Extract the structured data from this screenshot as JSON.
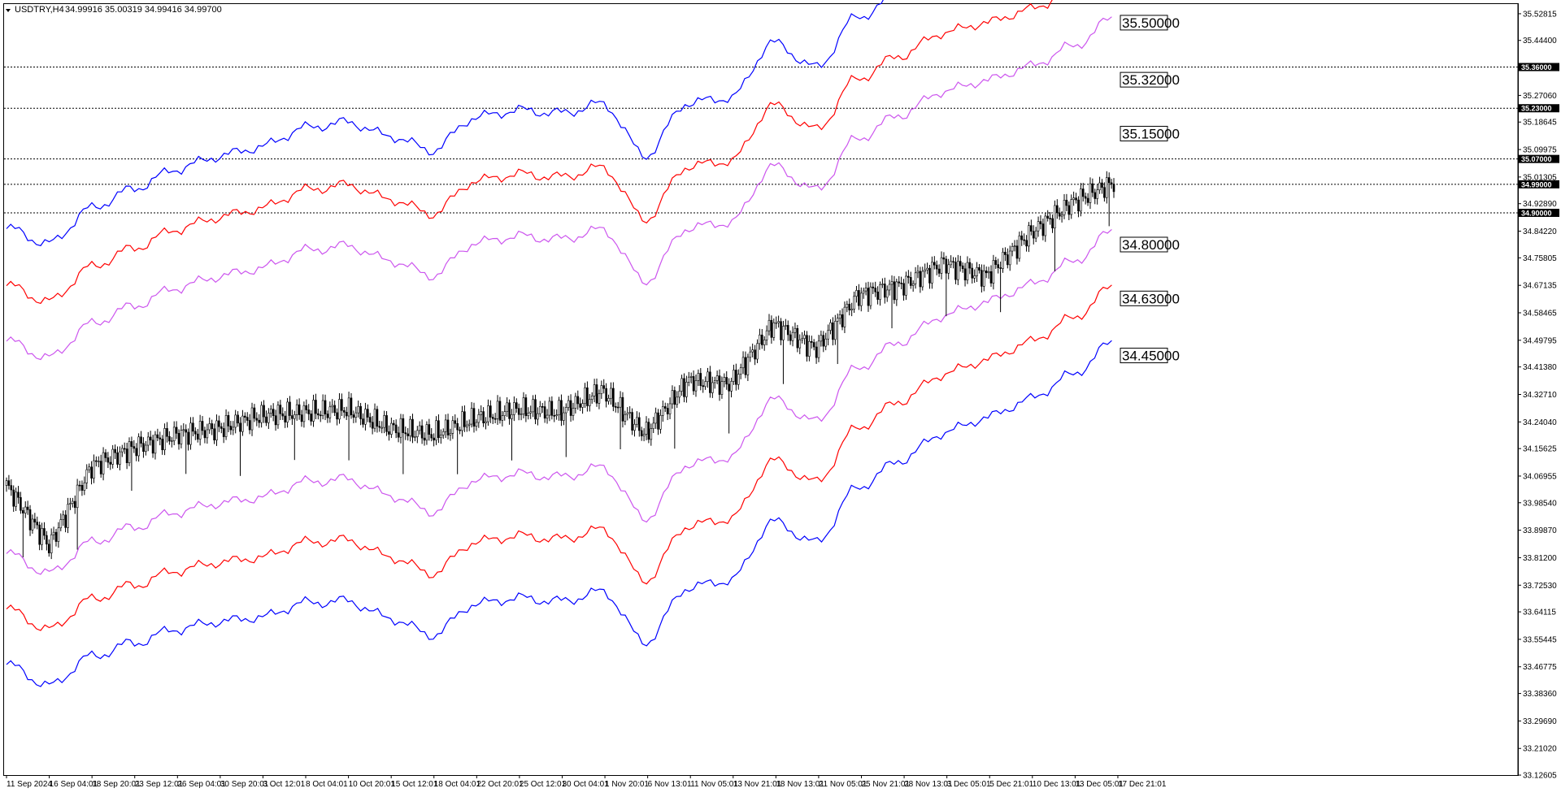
{
  "header": {
    "symbol": "USDTRY,H4",
    "ohlc": "34.99916 35.00319 34.99416 34.99700"
  },
  "chart_data": {
    "type": "candlestick",
    "title": "USDTRY,H4",
    "ylim": [
      33.1262,
      35.5587
    ],
    "y_ticks": [
      "35.52815",
      "35.44400",
      "35.35985",
      "35.27060",
      "35.18645",
      "35.09975",
      "35.01305",
      "34.92890",
      "34.84220",
      "34.75805",
      "34.67135",
      "34.58465",
      "34.49795",
      "34.41380",
      "34.32710",
      "34.24040",
      "34.15625",
      "34.06955",
      "33.98540",
      "33.89870",
      "33.81200",
      "33.72530",
      "33.64115",
      "33.55445",
      "33.46775",
      "33.38360",
      "33.29690",
      "33.21020",
      "33.12605"
    ],
    "x_labels": [
      "11 Sep 2024",
      "16 Sep 04:01",
      "18 Sep 20:01",
      "23 Sep 12:01",
      "26 Sep 04:01",
      "30 Sep 20:01",
      "3 Oct 12:01",
      "8 Oct 04:01",
      "10 Oct 20:01",
      "15 Oct 12:01",
      "18 Oct 04:01",
      "22 Oct 20:01",
      "25 Oct 12:01",
      "30 Oct 04:01",
      "1 Nov 20:01",
      "6 Nov 13:01",
      "11 Nov 05:01",
      "13 Nov 21:01",
      "18 Nov 13:01",
      "21 Nov 05:01",
      "25 Nov 21:01",
      "28 Nov 13:01",
      "3 Dec 05:01",
      "5 Dec 21:01",
      "10 Dec 13:01",
      "13 Dec 05:01",
      "17 Dec 21:01"
    ],
    "horizontal_levels": [
      {
        "value": 35.36,
        "label": "35.36000"
      },
      {
        "value": 35.23,
        "label": "35.23000"
      },
      {
        "value": 35.07,
        "label": "35.07000"
      },
      {
        "value": 34.99,
        "label": "34.99000"
      },
      {
        "value": 34.9,
        "label": "34.90000"
      }
    ],
    "band_labels": [
      {
        "value": 35.5,
        "label": "35.50000"
      },
      {
        "value": 35.32,
        "label": "35.32000"
      },
      {
        "value": 35.15,
        "label": "35.15000"
      },
      {
        "value": 34.8,
        "label": "34.80000"
      },
      {
        "value": 34.63,
        "label": "34.63000"
      },
      {
        "value": 34.45,
        "label": "34.45000"
      }
    ],
    "series": [
      {
        "name": "band-upper-3",
        "color": "#0000ff",
        "offset": 0.87
      },
      {
        "name": "band-upper-2",
        "color": "#ff0000",
        "offset": 0.69
      },
      {
        "name": "band-upper-1",
        "color": "#cc55ee",
        "offset": 0.515
      },
      {
        "name": "band-lower-1",
        "color": "#cc55ee",
        "offset": -0.155
      },
      {
        "name": "band-lower-2",
        "color": "#ff0000",
        "offset": -0.33
      },
      {
        "name": "band-lower-3",
        "color": "#0000ff",
        "offset": -0.505
      }
    ],
    "centre_line": {
      "x": [
        "11 Sep 2024",
        "16 Sep 04:01",
        "18 Sep 20:01",
        "23 Sep 12:01",
        "26 Sep 04:01",
        "30 Sep 20:01",
        "3 Oct 12:01",
        "8 Oct 04:01",
        "10 Oct 20:01",
        "15 Oct 12:01",
        "18 Oct 04:01",
        "22 Oct 20:01",
        "25 Oct 12:01",
        "30 Oct 04:01",
        "1 Nov 20:01",
        "6 Nov 13:01",
        "11 Nov 05:01",
        "13 Nov 21:01",
        "18 Nov 13:01",
        "21 Nov 05:01",
        "25 Nov 21:01",
        "28 Nov 13:01",
        "3 Dec 05:01",
        "5 Dec 21:01",
        "10 Dec 13:01",
        "13 Dec 05:01",
        "17 Dec 21:01"
      ],
      "y": [
        33.98,
        33.92,
        34.02,
        34.07,
        34.12,
        34.15,
        34.17,
        34.22,
        34.23,
        34.18,
        34.13,
        34.23,
        34.25,
        34.24,
        34.27,
        34.11,
        34.28,
        34.3,
        34.48,
        34.41,
        34.58,
        34.66,
        34.74,
        34.78,
        34.83,
        34.9,
        34.997
      ]
    },
    "price": {
      "x": [
        "11 Sep 2024",
        "16 Sep 04:01",
        "18 Sep 20:01",
        "23 Sep 12:01",
        "26 Sep 04:01",
        "30 Sep 20:01",
        "3 Oct 12:01",
        "8 Oct 04:01",
        "10 Oct 20:01",
        "15 Oct 12:01",
        "18 Oct 04:01",
        "22 Oct 20:01",
        "25 Oct 12:01",
        "30 Oct 04:01",
        "1 Nov 20:01",
        "6 Nov 13:01",
        "11 Nov 05:01",
        "13 Nov 21:01",
        "18 Nov 13:01",
        "21 Nov 05:01",
        "25 Nov 21:01",
        "28 Nov 13:01",
        "3 Dec 05:01",
        "5 Dec 21:01",
        "10 Dec 13:01",
        "13 Dec 05:01",
        "17 Dec 21:01"
      ],
      "y": [
        34.04,
        33.85,
        34.1,
        34.16,
        34.2,
        34.22,
        34.26,
        34.27,
        34.28,
        34.22,
        34.2,
        34.25,
        34.28,
        34.27,
        34.34,
        34.2,
        34.37,
        34.36,
        34.55,
        34.47,
        34.64,
        34.67,
        34.74,
        34.7,
        34.83,
        34.93,
        34.997
      ]
    }
  }
}
